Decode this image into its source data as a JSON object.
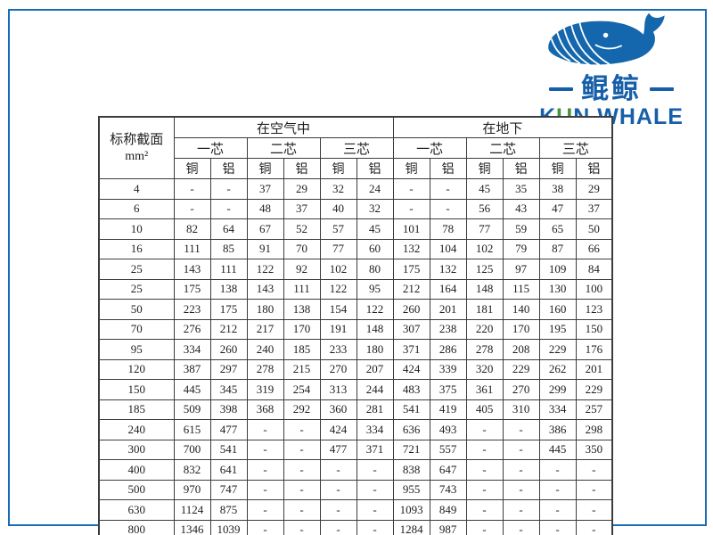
{
  "logo": {
    "cn": "鲲鲸",
    "en_segments": [
      {
        "text": "K",
        "color": "#1760a9"
      },
      {
        "text": "U",
        "color": "#41973b"
      },
      {
        "text": "N WHALE",
        "color": "#1760a9"
      }
    ],
    "whale_color": "#1467ad",
    "brand_blue": "#1760a9",
    "brand_green": "#41973b"
  },
  "frame_color": "#1a6cb5",
  "table": {
    "corner": {
      "line1": "标称截面",
      "line2": "mm²"
    },
    "groups": [
      "在空气中",
      "在地下"
    ],
    "cores": [
      "一芯",
      "二芯",
      "三芯",
      "一芯",
      "二芯",
      "三芯"
    ],
    "materials": [
      "铜",
      "铝",
      "铜",
      "铝",
      "铜",
      "铝",
      "铜",
      "铝",
      "铜",
      "铝",
      "铜",
      "铝"
    ],
    "rows": [
      {
        "section": "4",
        "values": [
          "-",
          "-",
          "37",
          "29",
          "32",
          "24",
          "-",
          "-",
          "45",
          "35",
          "38",
          "29"
        ]
      },
      {
        "section": "6",
        "values": [
          "-",
          "-",
          "48",
          "37",
          "40",
          "32",
          "-",
          "-",
          "56",
          "43",
          "47",
          "37"
        ]
      },
      {
        "section": "10",
        "values": [
          "82",
          "64",
          "67",
          "52",
          "57",
          "45",
          "101",
          "78",
          "77",
          "59",
          "65",
          "50"
        ]
      },
      {
        "section": "16",
        "values": [
          "111",
          "85",
          "91",
          "70",
          "77",
          "60",
          "132",
          "104",
          "102",
          "79",
          "87",
          "66"
        ]
      },
      {
        "section": "25",
        "values": [
          "143",
          "111",
          "122",
          "92",
          "102",
          "80",
          "175",
          "132",
          "125",
          "97",
          "109",
          "84"
        ]
      },
      {
        "section": "25",
        "values": [
          "175",
          "138",
          "143",
          "111",
          "122",
          "95",
          "212",
          "164",
          "148",
          "115",
          "130",
          "100"
        ]
      },
      {
        "section": "50",
        "values": [
          "223",
          "175",
          "180",
          "138",
          "154",
          "122",
          "260",
          "201",
          "181",
          "140",
          "160",
          "123"
        ]
      },
      {
        "section": "70",
        "values": [
          "276",
          "212",
          "217",
          "170",
          "191",
          "148",
          "307",
          "238",
          "220",
          "170",
          "195",
          "150"
        ]
      },
      {
        "section": "95",
        "values": [
          "334",
          "260",
          "240",
          "185",
          "233",
          "180",
          "371",
          "286",
          "278",
          "208",
          "229",
          "176"
        ]
      },
      {
        "section": "120",
        "values": [
          "387",
          "297",
          "278",
          "215",
          "270",
          "207",
          "424",
          "339",
          "320",
          "229",
          "262",
          "201"
        ]
      },
      {
        "section": "150",
        "values": [
          "445",
          "345",
          "319",
          "254",
          "313",
          "244",
          "483",
          "375",
          "361",
          "270",
          "299",
          "229"
        ]
      },
      {
        "section": "185",
        "values": [
          "509",
          "398",
          "368",
          "292",
          "360",
          "281",
          "541",
          "419",
          "405",
          "310",
          "334",
          "257"
        ]
      },
      {
        "section": "240",
        "values": [
          "615",
          "477",
          "-",
          "-",
          "424",
          "334",
          "636",
          "493",
          "-",
          "-",
          "386",
          "298"
        ]
      },
      {
        "section": "300",
        "values": [
          "700",
          "541",
          "-",
          "-",
          "477",
          "371",
          "721",
          "557",
          "-",
          "-",
          "445",
          "350"
        ]
      },
      {
        "section": "400",
        "values": [
          "832",
          "641",
          "-",
          "-",
          "-",
          "-",
          "838",
          "647",
          "-",
          "-",
          "-",
          "-"
        ]
      },
      {
        "section": "500",
        "values": [
          "970",
          "747",
          "-",
          "-",
          "-",
          "-",
          "955",
          "743",
          "-",
          "-",
          "-",
          "-"
        ]
      },
      {
        "section": "630",
        "values": [
          "1124",
          "875",
          "-",
          "-",
          "-",
          "-",
          "1093",
          "849",
          "-",
          "-",
          "-",
          "-"
        ]
      },
      {
        "section": "800",
        "values": [
          "1346",
          "1039",
          "-",
          "-",
          "-",
          "-",
          "1284",
          "987",
          "-",
          "-",
          "-",
          "-"
        ]
      }
    ]
  }
}
